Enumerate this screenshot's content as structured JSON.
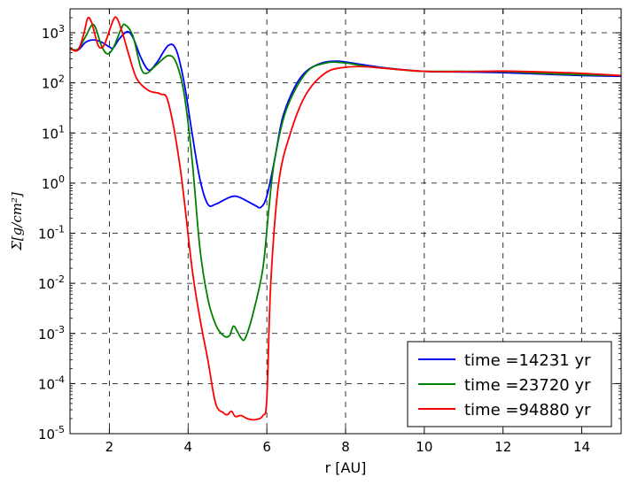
{
  "chart_data": {
    "type": "line",
    "xlabel": "r [AU]",
    "ylabel": "Σ[g/cm²]",
    "xlim": [
      1.0,
      15.0
    ],
    "ylim": [
      1e-05,
      3000
    ],
    "yscale": "log",
    "grid": true,
    "legend_position": "lower-right",
    "x_ticks": [
      2,
      4,
      6,
      8,
      10,
      12,
      14
    ],
    "x_tick_labels": [
      "2",
      "4",
      "6",
      "8",
      "10",
      "12",
      "14"
    ],
    "y_tick_labels": [
      {
        "base": "10",
        "exp": "-5"
      },
      {
        "base": "10",
        "exp": "-4"
      },
      {
        "base": "10",
        "exp": "-3"
      },
      {
        "base": "10",
        "exp": "-2"
      },
      {
        "base": "10",
        "exp": "-1"
      },
      {
        "base": "10",
        "exp": "0"
      },
      {
        "base": "10",
        "exp": "1"
      },
      {
        "base": "10",
        "exp": "2"
      },
      {
        "base": "10",
        "exp": "3"
      }
    ],
    "series": [
      {
        "name": "time =14231 yr",
        "color": "#0000ff",
        "points": [
          [
            1.0,
            480
          ],
          [
            1.2,
            450
          ],
          [
            1.4,
            650
          ],
          [
            1.6,
            720
          ],
          [
            1.8,
            650
          ],
          [
            2.0,
            520
          ],
          [
            2.1,
            500
          ],
          [
            2.25,
            750
          ],
          [
            2.45,
            1050
          ],
          [
            2.6,
            800
          ],
          [
            2.8,
            320
          ],
          [
            3.0,
            180
          ],
          [
            3.2,
            250
          ],
          [
            3.5,
            560
          ],
          [
            3.7,
            450
          ],
          [
            3.9,
            100
          ],
          [
            4.1,
            10
          ],
          [
            4.3,
            1.2
          ],
          [
            4.5,
            0.38
          ],
          [
            4.7,
            0.38
          ],
          [
            5.0,
            0.5
          ],
          [
            5.2,
            0.55
          ],
          [
            5.4,
            0.48
          ],
          [
            5.7,
            0.36
          ],
          [
            5.85,
            0.33
          ],
          [
            6.0,
            0.55
          ],
          [
            6.2,
            3
          ],
          [
            6.4,
            20
          ],
          [
            6.7,
            80
          ],
          [
            7.0,
            170
          ],
          [
            7.4,
            250
          ],
          [
            7.8,
            270
          ],
          [
            8.3,
            240
          ],
          [
            9.0,
            200
          ],
          [
            10.0,
            170
          ],
          [
            11.0,
            165
          ],
          [
            12.0,
            160
          ],
          [
            13.0,
            150
          ],
          [
            14.0,
            140
          ],
          [
            15.0,
            135
          ]
        ]
      },
      {
        "name": "time =23720 yr",
        "color": "#008000",
        "points": [
          [
            1.0,
            480
          ],
          [
            1.2,
            470
          ],
          [
            1.4,
            850
          ],
          [
            1.6,
            1450
          ],
          [
            1.8,
            550
          ],
          [
            1.95,
            380
          ],
          [
            2.1,
            500
          ],
          [
            2.3,
            1200
          ],
          [
            2.4,
            1450
          ],
          [
            2.6,
            850
          ],
          [
            2.8,
            200
          ],
          [
            2.95,
            155
          ],
          [
            3.2,
            230
          ],
          [
            3.5,
            350
          ],
          [
            3.7,
            250
          ],
          [
            3.9,
            60
          ],
          [
            4.1,
            3
          ],
          [
            4.3,
            0.05
          ],
          [
            4.5,
            0.005
          ],
          [
            4.7,
            0.0015
          ],
          [
            4.9,
            0.0009
          ],
          [
            5.05,
            0.0009
          ],
          [
            5.15,
            0.0014
          ],
          [
            5.25,
            0.0011
          ],
          [
            5.35,
            0.0008
          ],
          [
            5.45,
            0.0008
          ],
          [
            5.65,
            0.0025
          ],
          [
            5.9,
            0.02
          ],
          [
            6.05,
            0.3
          ],
          [
            6.2,
            3
          ],
          [
            6.5,
            30
          ],
          [
            7.0,
            160
          ],
          [
            7.5,
            250
          ],
          [
            8.0,
            250
          ],
          [
            8.5,
            215
          ],
          [
            9.5,
            180
          ],
          [
            10.0,
            170
          ],
          [
            11.0,
            170
          ],
          [
            12.0,
            168
          ],
          [
            13.0,
            155
          ],
          [
            14.0,
            145
          ],
          [
            15.0,
            140
          ]
        ]
      },
      {
        "name": "time =94880 yr",
        "color": "#ff0000",
        "points": [
          [
            1.0,
            480
          ],
          [
            1.2,
            450
          ],
          [
            1.35,
            950
          ],
          [
            1.45,
            1950
          ],
          [
            1.55,
            1600
          ],
          [
            1.7,
            600
          ],
          [
            1.8,
            500
          ],
          [
            1.9,
            650
          ],
          [
            2.1,
            1800
          ],
          [
            2.2,
            1900
          ],
          [
            2.35,
            900
          ],
          [
            2.5,
            350
          ],
          [
            2.7,
            120
          ],
          [
            3.0,
            70
          ],
          [
            3.3,
            60
          ],
          [
            3.5,
            40
          ],
          [
            3.8,
            2
          ],
          [
            4.1,
            0.02
          ],
          [
            4.3,
            0.002
          ],
          [
            4.5,
            0.0003
          ],
          [
            4.7,
            4e-05
          ],
          [
            4.9,
            2.6e-05
          ],
          [
            5.0,
            2.4e-05
          ],
          [
            5.1,
            2.8e-05
          ],
          [
            5.2,
            2.2e-05
          ],
          [
            5.35,
            2.3e-05
          ],
          [
            5.5,
            2e-05
          ],
          [
            5.7,
            1.9e-05
          ],
          [
            5.9,
            2.3e-05
          ],
          [
            6.0,
            5e-05
          ],
          [
            6.1,
            0.01
          ],
          [
            6.3,
            1
          ],
          [
            6.6,
            10
          ],
          [
            7.0,
            60
          ],
          [
            7.5,
            160
          ],
          [
            8.0,
            205
          ],
          [
            8.5,
            210
          ],
          [
            9.0,
            195
          ],
          [
            10.0,
            170
          ],
          [
            11.0,
            168
          ],
          [
            12.0,
            172
          ],
          [
            13.0,
            165
          ],
          [
            14.0,
            155
          ],
          [
            15.0,
            140
          ]
        ]
      }
    ]
  }
}
